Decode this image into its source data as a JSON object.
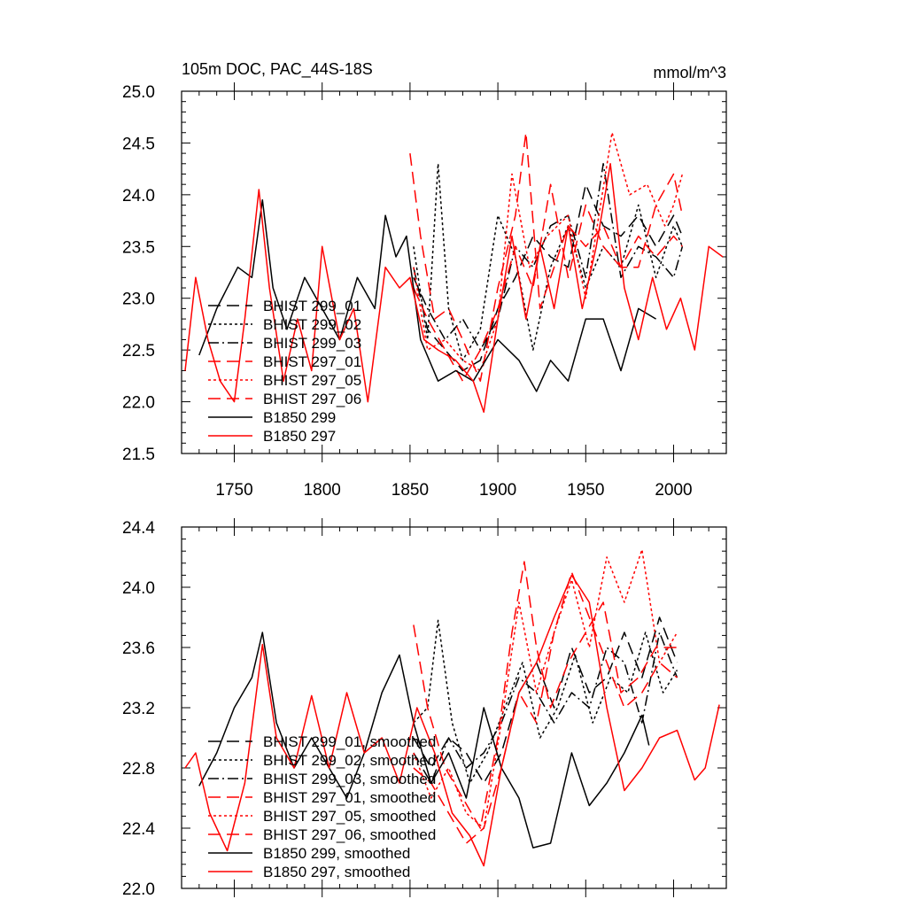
{
  "chart_data": [
    {
      "type": "line",
      "title": "105m DOC, PAC_44S-18S",
      "units": "mmol/m^3",
      "xlim": [
        1720,
        2030
      ],
      "ylim": [
        21.5,
        25.0
      ],
      "x_ticks": [
        1750,
        1800,
        1850,
        1900,
        1950,
        2000
      ],
      "x_tick_labels": [
        "1750",
        "1800",
        "1850",
        "1900",
        "1950",
        "2000"
      ],
      "y_ticks": [
        21.5,
        22.0,
        22.5,
        23.0,
        23.5,
        24.0,
        24.5,
        25.0
      ],
      "y_tick_labels": [
        "21.5",
        "22.0",
        "22.5",
        "23.0",
        "23.5",
        "24.0",
        "24.5",
        "25.0"
      ],
      "legend_position": "left",
      "series": [
        {
          "name": "BHIST 299_01",
          "color": "#000000",
          "dash": "long-dash",
          "x": [
            1852,
            1860,
            1870,
            1880,
            1890,
            1900,
            1910,
            1920,
            1930,
            1940,
            1950,
            1960,
            1970,
            1980,
            1990,
            2000,
            2005
          ],
          "values": [
            23.3,
            22.7,
            22.5,
            22.3,
            22.4,
            22.9,
            23.2,
            23.6,
            23.4,
            23.3,
            24.1,
            23.7,
            23.6,
            23.8,
            23.5,
            23.8,
            23.6
          ]
        },
        {
          "name": "BHIST 299_02",
          "color": "#000000",
          "dash": "dotted",
          "x": [
            1852,
            1860,
            1866,
            1872,
            1880,
            1890,
            1900,
            1910,
            1920,
            1930,
            1940,
            1950,
            1960,
            1970,
            1980,
            1990,
            2000,
            2005
          ],
          "values": [
            23.5,
            22.6,
            24.3,
            22.9,
            22.4,
            22.7,
            23.8,
            23.4,
            22.5,
            23.3,
            23.7,
            23.1,
            23.5,
            23.3,
            23.9,
            23.2,
            23.7,
            23.5
          ]
        },
        {
          "name": "BHIST 299_03",
          "color": "#000000",
          "dash": "dash-dot",
          "x": [
            1852,
            1860,
            1870,
            1880,
            1890,
            1900,
            1910,
            1920,
            1930,
            1940,
            1950,
            1960,
            1970,
            1980,
            1990,
            2000,
            2005
          ],
          "values": [
            23.2,
            22.9,
            22.6,
            22.8,
            22.5,
            22.8,
            23.5,
            23.3,
            23.7,
            23.8,
            23.2,
            24.3,
            23.2,
            23.5,
            23.4,
            23.2,
            23.5
          ]
        },
        {
          "name": "BHIST 297_01",
          "color": "#ff0000",
          "dash": "long-dash",
          "x": [
            1850,
            1856,
            1864,
            1872,
            1880,
            1890,
            1900,
            1910,
            1916,
            1924,
            1932,
            1940,
            1950,
            1960,
            1970,
            1980,
            1990,
            2000,
            2005
          ],
          "values": [
            24.4,
            23.6,
            22.8,
            22.9,
            22.6,
            22.2,
            23.1,
            23.8,
            24.6,
            22.9,
            23.3,
            23.7,
            23.5,
            23.7,
            23.3,
            23.3,
            23.9,
            24.2,
            23.8
          ]
        },
        {
          "name": "BHIST 297_05",
          "color": "#ff0000",
          "dash": "dotted",
          "x": [
            1852,
            1860,
            1870,
            1880,
            1890,
            1900,
            1908,
            1918,
            1928,
            1940,
            1950,
            1965,
            1975,
            1985,
            1995,
            2000,
            2005
          ],
          "values": [
            23.3,
            22.5,
            22.6,
            22.4,
            22.3,
            22.8,
            24.2,
            23.3,
            23.6,
            23.8,
            23.0,
            24.6,
            24.0,
            24.1,
            23.7,
            23.9,
            24.2
          ]
        },
        {
          "name": "BHIST 297_06",
          "color": "#ff0000",
          "dash": "long-dash",
          "x": [
            1852,
            1860,
            1870,
            1880,
            1890,
            1900,
            1910,
            1920,
            1930,
            1940,
            1950,
            1960,
            1970,
            1980,
            1990,
            2000,
            2005
          ],
          "values": [
            23.1,
            22.8,
            22.5,
            22.2,
            22.5,
            22.9,
            23.5,
            23.1,
            24.1,
            23.2,
            23.9,
            23.5,
            23.3,
            23.6,
            23.4,
            23.6,
            23.5
          ]
        },
        {
          "name": "B1850 299",
          "color": "#000000",
          "dash": "solid",
          "x": [
            1730,
            1740,
            1752,
            1760,
            1766,
            1772,
            1780,
            1790,
            1800,
            1810,
            1820,
            1830,
            1836,
            1842,
            1848,
            1856,
            1866,
            1876,
            1886,
            1900,
            1912,
            1922,
            1930,
            1940,
            1950,
            1960,
            1970,
            1980,
            1990
          ],
          "values": [
            22.45,
            22.9,
            23.3,
            23.2,
            23.95,
            23.1,
            22.7,
            23.2,
            22.9,
            22.6,
            23.2,
            22.9,
            23.8,
            23.4,
            23.6,
            22.6,
            22.2,
            22.3,
            22.2,
            22.6,
            22.4,
            22.1,
            22.4,
            22.2,
            22.8,
            22.8,
            22.3,
            22.9,
            22.8
          ]
        },
        {
          "name": "B1850 297",
          "color": "#ff0000",
          "dash": "solid",
          "x": [
            1722,
            1728,
            1735,
            1742,
            1750,
            1756,
            1764,
            1770,
            1778,
            1786,
            1794,
            1800,
            1810,
            1818,
            1826,
            1836,
            1844,
            1850,
            1858,
            1866,
            1876,
            1886,
            1892,
            1900,
            1908,
            1916,
            1924,
            1932,
            1940,
            1948,
            1956,
            1964,
            1972,
            1980,
            1988,
            1996,
            2004,
            2012,
            2020,
            2028
          ],
          "values": [
            22.3,
            23.2,
            22.6,
            22.2,
            22.0,
            22.8,
            24.05,
            23.1,
            22.2,
            22.8,
            22.3,
            23.5,
            22.6,
            22.9,
            22.0,
            23.3,
            23.1,
            23.2,
            22.6,
            22.5,
            22.4,
            22.2,
            21.9,
            22.8,
            23.6,
            22.8,
            23.5,
            22.9,
            23.7,
            22.9,
            23.5,
            24.3,
            23.1,
            22.6,
            23.2,
            22.7,
            23.0,
            22.5,
            23.5,
            23.4
          ]
        }
      ]
    },
    {
      "type": "line",
      "title": "",
      "xlim": [
        1720,
        2030
      ],
      "ylim": [
        22.0,
        24.4
      ],
      "y_ticks": [
        22.0,
        22.4,
        22.8,
        23.2,
        23.6,
        24.0,
        24.4
      ],
      "y_tick_labels": [
        "22.0",
        "22.4",
        "22.8",
        "23.2",
        "23.6",
        "24.0",
        "24.4"
      ],
      "legend_position": "lower-left",
      "series": [
        {
          "name": "BHIST 299_01, smoothed",
          "color": "#000000",
          "dash": "long-dash",
          "x": [
            1852,
            1862,
            1872,
            1882,
            1892,
            1902,
            1912,
            1922,
            1932,
            1942,
            1952,
            1962,
            1972,
            1982,
            1992,
            2002
          ],
          "values": [
            23.0,
            22.8,
            23.0,
            22.9,
            22.7,
            22.9,
            23.3,
            23.5,
            23.2,
            23.6,
            23.3,
            23.4,
            23.7,
            23.4,
            23.8,
            23.5
          ]
        },
        {
          "name": "BHIST 299_02, smoothed",
          "color": "#000000",
          "dash": "dotted",
          "x": [
            1852,
            1860,
            1866,
            1874,
            1884,
            1894,
            1904,
            1914,
            1924,
            1934,
            1944,
            1954,
            1964,
            1974,
            1984,
            1994,
            2002
          ],
          "values": [
            23.1,
            23.2,
            23.78,
            23.1,
            22.7,
            22.9,
            23.2,
            23.5,
            23.0,
            23.2,
            23.55,
            23.1,
            23.4,
            23.3,
            23.7,
            23.3,
            23.45
          ]
        },
        {
          "name": "BHIST 299_03, smoothed",
          "color": "#000000",
          "dash": "dash-dot",
          "x": [
            1852,
            1862,
            1872,
            1882,
            1892,
            1902,
            1912,
            1922,
            1932,
            1942,
            1952,
            1962,
            1972,
            1982,
            1992,
            2002
          ],
          "values": [
            22.9,
            22.7,
            23.0,
            22.8,
            22.9,
            23.1,
            23.4,
            23.3,
            23.1,
            23.3,
            23.2,
            23.6,
            23.5,
            23.1,
            23.7,
            23.4
          ]
        },
        {
          "name": "BHIST 297_01, smoothed",
          "color": "#ff0000",
          "dash": "long-dash",
          "x": [
            1852,
            1860,
            1870,
            1880,
            1890,
            1900,
            1908,
            1915,
            1922,
            1930,
            1940,
            1950,
            1960,
            1970,
            1980,
            1990,
            2002
          ],
          "values": [
            23.75,
            23.2,
            22.8,
            22.6,
            22.4,
            23.0,
            23.7,
            24.17,
            23.6,
            23.2,
            23.5,
            23.7,
            23.9,
            23.3,
            23.4,
            23.6,
            23.6
          ]
        },
        {
          "name": "BHIST 297_05, smoothed",
          "color": "#ff0000",
          "dash": "dotted",
          "x": [
            1852,
            1862,
            1872,
            1882,
            1892,
            1902,
            1912,
            1922,
            1932,
            1942,
            1952,
            1962,
            1972,
            1982,
            1992,
            2002
          ],
          "values": [
            22.9,
            22.6,
            22.8,
            22.5,
            22.4,
            23.1,
            23.9,
            23.3,
            23.7,
            24.05,
            23.6,
            24.2,
            23.9,
            24.25,
            23.5,
            23.7
          ]
        },
        {
          "name": "BHIST 297_06, smoothed",
          "color": "#ff0000",
          "dash": "long-dash",
          "x": [
            1852,
            1862,
            1872,
            1882,
            1892,
            1902,
            1912,
            1922,
            1932,
            1942,
            1952,
            1962,
            1972,
            1982,
            1992,
            2002
          ],
          "values": [
            22.8,
            22.7,
            22.5,
            22.3,
            22.4,
            22.8,
            23.3,
            23.1,
            23.7,
            24.1,
            23.8,
            23.5,
            23.2,
            23.3,
            23.5,
            23.4
          ]
        },
        {
          "name": "B1850 299, smoothed",
          "color": "#000000",
          "dash": "solid",
          "x": [
            1730,
            1740,
            1750,
            1760,
            1766,
            1774,
            1784,
            1794,
            1804,
            1814,
            1824,
            1834,
            1844,
            1852,
            1862,
            1872,
            1882,
            1892,
            1902,
            1912,
            1920,
            1930,
            1942,
            1952,
            1962,
            1972,
            1982,
            1986
          ],
          "values": [
            22.68,
            22.9,
            23.2,
            23.4,
            23.7,
            23.1,
            22.8,
            23.0,
            22.8,
            22.6,
            22.9,
            23.3,
            23.55,
            23.1,
            22.7,
            22.9,
            22.6,
            23.2,
            22.8,
            22.6,
            22.27,
            22.3,
            22.9,
            22.55,
            22.7,
            22.9,
            23.15,
            22.95
          ]
        },
        {
          "name": "B1850 297, smoothed",
          "color": "#ff0000",
          "dash": "solid",
          "x": [
            1722,
            1728,
            1736,
            1746,
            1756,
            1766,
            1774,
            1784,
            1794,
            1804,
            1814,
            1824,
            1834,
            1844,
            1854,
            1864,
            1874,
            1884,
            1892,
            1902,
            1912,
            1922,
            1932,
            1942,
            1952,
            1962,
            1972,
            1982,
            1992,
            2002,
            2012,
            2018,
            2026
          ],
          "values": [
            22.8,
            22.9,
            22.5,
            22.25,
            22.7,
            23.62,
            23.0,
            22.8,
            23.28,
            22.8,
            23.3,
            22.9,
            23.0,
            22.7,
            23.2,
            22.9,
            22.5,
            22.35,
            22.15,
            22.8,
            23.3,
            23.5,
            23.8,
            24.08,
            23.9,
            23.2,
            22.65,
            22.8,
            23.0,
            23.05,
            22.72,
            22.8,
            23.22
          ]
        }
      ]
    }
  ]
}
